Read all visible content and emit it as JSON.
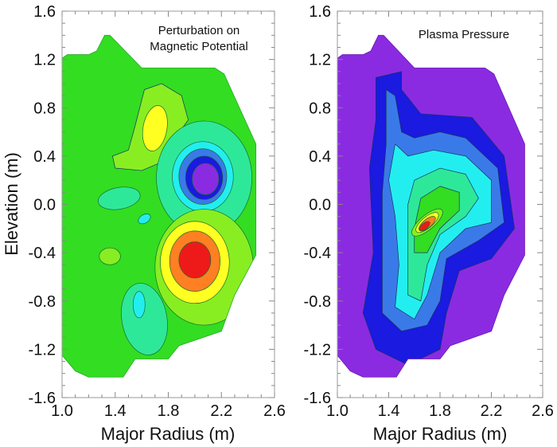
{
  "chart_data": [
    {
      "type": "contour",
      "title": "Perturbation on Magnetic Potential",
      "xlabel": "Major Radius (m)",
      "ylabel": "Elevation (m)",
      "xlim": [
        1.0,
        2.6
      ],
      "ylim": [
        -1.6,
        1.6
      ],
      "xticks": [
        "1.0",
        "1.4",
        "1.8",
        "2.2",
        "2.6"
      ],
      "yticks": [
        "1.6",
        "1.2",
        "0.8",
        "0.4",
        "0.0",
        "-0.4",
        "-0.8",
        "-1.2",
        "-1.6"
      ],
      "features": [
        {
          "name": "positive lobe (yellow)",
          "r": 1.7,
          "z": 0.62
        },
        {
          "name": "negative lobe (purple)",
          "r": 2.07,
          "z": 0.22
        },
        {
          "name": "positive lobe (red)",
          "r": 2.0,
          "z": -0.45
        },
        {
          "name": "negative lobe (cyan)",
          "r": 1.57,
          "z": -0.83
        }
      ]
    },
    {
      "type": "contour",
      "title": "Plasma Pressure",
      "xlabel": "Major Radius (m)",
      "ylabel": "",
      "xlim": [
        1.0,
        2.6
      ],
      "ylim": [
        -1.6,
        1.6
      ],
      "xticks": [
        "1.0",
        "1.4",
        "1.8",
        "2.2",
        "2.6"
      ],
      "yticks": [
        "1.6",
        "1.2",
        "0.8",
        "0.4",
        "0.0",
        "-0.4",
        "-0.8",
        "-1.2",
        "-1.6"
      ],
      "features": [
        {
          "name": "pressure peak (red)",
          "r": 1.68,
          "z": -0.2
        }
      ]
    }
  ],
  "boundary": [
    [
      1.0,
      1.21
    ],
    [
      1.04,
      1.24
    ],
    [
      1.2,
      1.24
    ],
    [
      1.26,
      1.27
    ],
    [
      1.32,
      1.4
    ],
    [
      1.36,
      1.4
    ],
    [
      1.6,
      1.13
    ],
    [
      2.15,
      1.13
    ],
    [
      2.22,
      1.08
    ],
    [
      2.46,
      0.5
    ],
    [
      2.46,
      -0.42
    ],
    [
      2.3,
      -0.75
    ],
    [
      2.2,
      -1.05
    ],
    [
      1.88,
      -1.17
    ],
    [
      1.8,
      -1.28
    ],
    [
      1.55,
      -1.28
    ],
    [
      1.46,
      -1.43
    ],
    [
      1.2,
      -1.43
    ],
    [
      1.1,
      -1.38
    ],
    [
      1.0,
      -1.25
    ]
  ],
  "colors": {
    "purple": "#8a2be2",
    "darkblue": "#1a1ae0",
    "blue": "#3a7ae8",
    "cyan": "#22eef0",
    "teal": "#2ee89a",
    "green": "#33dd22",
    "lightgreen": "#88ee22",
    "yellow": "#ffff22",
    "orange": "#ff8022",
    "red": "#ee1a1a"
  }
}
